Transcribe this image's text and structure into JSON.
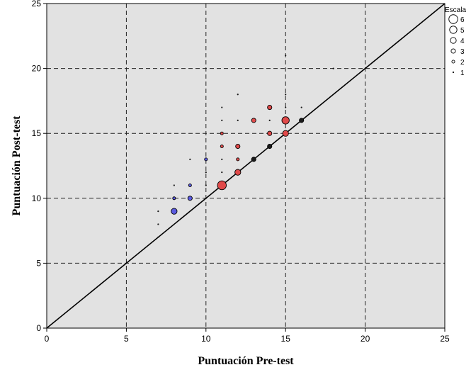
{
  "chart_data": {
    "type": "scatter",
    "title": "",
    "xlabel": "Puntuación Pre-test",
    "ylabel": "Puntuación Post-test",
    "xlim": [
      0,
      25
    ],
    "ylim": [
      0,
      25
    ],
    "xticks": [
      0,
      5,
      10,
      15,
      20,
      25
    ],
    "yticks": [
      0,
      5,
      10,
      15,
      20,
      25
    ],
    "grid": true,
    "reference_line": {
      "from": [
        0,
        0
      ],
      "to": [
        25,
        25
      ]
    },
    "legend": {
      "title": "Escala",
      "placement": "top-right",
      "sizes": [
        6,
        5,
        4,
        3,
        2,
        1
      ]
    },
    "colors": {
      "red": "#e04a4a",
      "blue": "#5a5ae0",
      "black": "#1a1a1a",
      "plot_background": "#e2e2e2",
      "grid": "#222222"
    },
    "points": [
      {
        "x": 7,
        "y": 7,
        "size": 1,
        "color": "black"
      },
      {
        "x": 7,
        "y": 8,
        "size": 1,
        "color": "black"
      },
      {
        "x": 7,
        "y": 9,
        "size": 1,
        "color": "black"
      },
      {
        "x": 8,
        "y": 9,
        "size": 4,
        "color": "blue"
      },
      {
        "x": 8,
        "y": 10,
        "size": 2,
        "color": "blue"
      },
      {
        "x": 8,
        "y": 11,
        "size": 1,
        "color": "black"
      },
      {
        "x": 9,
        "y": 10,
        "size": 3,
        "color": "blue"
      },
      {
        "x": 9,
        "y": 11,
        "size": 2,
        "color": "blue"
      },
      {
        "x": 9,
        "y": 13,
        "size": 1,
        "color": "black"
      },
      {
        "x": 10,
        "y": 11,
        "size": 1,
        "color": "black"
      },
      {
        "x": 10,
        "y": 12,
        "size": 1,
        "color": "black"
      },
      {
        "x": 10,
        "y": 13,
        "size": 2,
        "color": "blue"
      },
      {
        "x": 11,
        "y": 11,
        "size": 6,
        "color": "red"
      },
      {
        "x": 11,
        "y": 12,
        "size": 1,
        "color": "black"
      },
      {
        "x": 11,
        "y": 13,
        "size": 1,
        "color": "black"
      },
      {
        "x": 11,
        "y": 14,
        "size": 2,
        "color": "red"
      },
      {
        "x": 11,
        "y": 15,
        "size": 2,
        "color": "red"
      },
      {
        "x": 11,
        "y": 16,
        "size": 1,
        "color": "black"
      },
      {
        "x": 11,
        "y": 17,
        "size": 1,
        "color": "black"
      },
      {
        "x": 12,
        "y": 12,
        "size": 4,
        "color": "red"
      },
      {
        "x": 12,
        "y": 13,
        "size": 2,
        "color": "red"
      },
      {
        "x": 12,
        "y": 14,
        "size": 3,
        "color": "red"
      },
      {
        "x": 12,
        "y": 16,
        "size": 1,
        "color": "black"
      },
      {
        "x": 12,
        "y": 18,
        "size": 1,
        "color": "black"
      },
      {
        "x": 13,
        "y": 13,
        "size": 3,
        "color": "black"
      },
      {
        "x": 13,
        "y": 16,
        "size": 3,
        "color": "red"
      },
      {
        "x": 14,
        "y": 14,
        "size": 3,
        "color": "black"
      },
      {
        "x": 14,
        "y": 15,
        "size": 3,
        "color": "red"
      },
      {
        "x": 14,
        "y": 16,
        "size": 1,
        "color": "black"
      },
      {
        "x": 14,
        "y": 17,
        "size": 3,
        "color": "red"
      },
      {
        "x": 15,
        "y": 15,
        "size": 4,
        "color": "red"
      },
      {
        "x": 15,
        "y": 16,
        "size": 5,
        "color": "red"
      },
      {
        "x": 15,
        "y": 17,
        "size": 1,
        "color": "black"
      },
      {
        "x": 15,
        "y": 18,
        "size": 1,
        "color": "black"
      },
      {
        "x": 15,
        "y": 21,
        "size": 1,
        "color": "black"
      },
      {
        "x": 16,
        "y": 16,
        "size": 3,
        "color": "black"
      },
      {
        "x": 16,
        "y": 17,
        "size": 1,
        "color": "black"
      },
      {
        "x": 18,
        "y": 20,
        "size": 1,
        "color": "black"
      }
    ]
  }
}
